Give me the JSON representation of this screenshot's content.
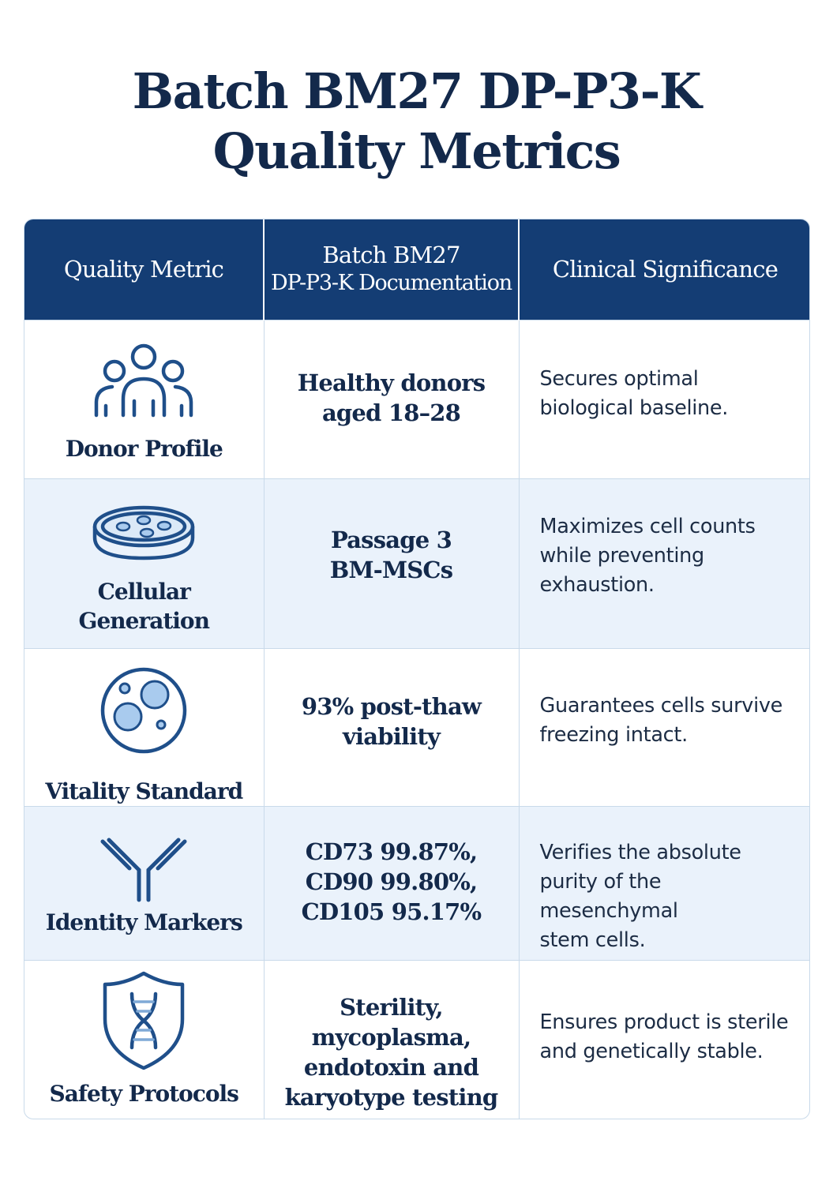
{
  "title": {
    "line1": "Batch BM27 DP-P3-K",
    "line2": "Quality Metrics"
  },
  "table": {
    "headers": {
      "metric": "Quality Metric",
      "docs_line1": "Batch BM27",
      "docs_line2": "DP-P3-K Documentation",
      "significance": "Clinical Significance"
    },
    "rows": [
      {
        "metric": "Donor Profile",
        "icon": "people-group-icon",
        "doc": [
          "Healthy donors",
          "aged 18–28"
        ],
        "significance": [
          "Secures optimal",
          "biological baseline."
        ]
      },
      {
        "metric_lines": [
          "Cellular",
          "Generation"
        ],
        "icon": "petri-dish-icon",
        "doc": [
          "Passage 3",
          "BM-MSCs"
        ],
        "significance": [
          "Maximizes cell counts",
          "while preventing",
          "exhaustion."
        ]
      },
      {
        "metric": "Vitality Standard",
        "icon": "cell-icon",
        "doc": [
          "93% post-thaw",
          "viability"
        ],
        "significance": [
          "Guarantees cells survive",
          "freezing intact."
        ]
      },
      {
        "metric": "Identity Markers",
        "icon": "antibody-icon",
        "doc": [
          "CD73 99.87%,",
          "CD90 99.80%,",
          "CD105 95.17%"
        ],
        "significance": [
          "Verifies the absolute",
          "purity of the mesenchymal",
          "stem cells."
        ]
      },
      {
        "metric": "Safety Protocols",
        "icon": "dna-shield-icon",
        "doc": [
          "Sterility, mycoplasma,",
          "endotoxin and",
          "karyotype testing"
        ],
        "significance": [
          "Ensures product is sterile",
          "and genetically stable."
        ]
      }
    ]
  },
  "colors": {
    "navy": "#13294b",
    "header_bg": "#143d74",
    "icon_blue": "#1f4f8a",
    "icon_fill": "#a9cbee",
    "alt_row": "#eaf2fb",
    "border": "#c9daea"
  }
}
